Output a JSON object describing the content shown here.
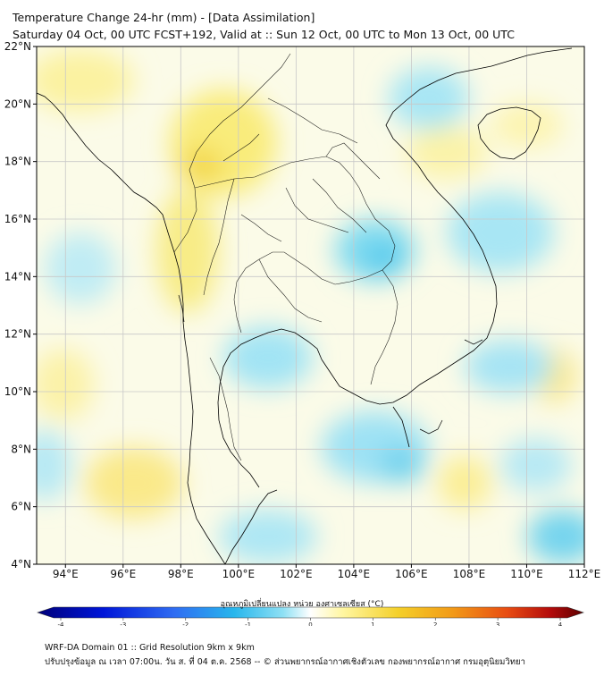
{
  "header": {
    "title": "Temperature Change 24-hr (mm) - [Data Assimilation]",
    "subtitle": "Saturday 04 Oct, 00 UTC FCST+192, Valid at :: Sun 12 Oct, 00 UTC to Mon 13 Oct, 00 UTC"
  },
  "map": {
    "lon_ticks": [
      "94°E",
      "96°E",
      "98°E",
      "100°E",
      "102°E",
      "104°E",
      "106°E",
      "108°E",
      "110°E",
      "112°E"
    ],
    "lat_ticks": [
      "22°N",
      "20°N",
      "18°N",
      "16°N",
      "14°N",
      "12°N",
      "10°N",
      "8°N",
      "6°N",
      "4°N"
    ],
    "lon_range": [
      93,
      112
    ],
    "lat_range": [
      4,
      22
    ],
    "grid": true
  },
  "colorbar": {
    "label": "อุณหภูมิเปลี่ยนแปลง หน่วย องศาเซลเซียส (°C)",
    "ticks": [
      "-4",
      "-3",
      "-2",
      "-1",
      "0",
      "1",
      "2",
      "3",
      "4"
    ],
    "range": [
      -4,
      4
    ],
    "colors": [
      "#00007a",
      "#0016d8",
      "#2f6cf2",
      "#27b6ec",
      "#8fe0f4",
      "#ffffff",
      "#fff6a0",
      "#f4d02a",
      "#f29a17",
      "#e84c12",
      "#b30b0b",
      "#5c0000"
    ]
  },
  "footer": {
    "line1": "WRF-DA Domain 01 :: Grid Resolution 9km x 9km",
    "line2": "ปรับปรุงข้อมูล ณ เวลา 07:00น. วัน ส. ที่ 04 ต.ค. 2568 -- © ส่วนพยากรณ์อากาศเชิงตัวเลข กองพยากรณ์อากาศ กรมอุตุนิยมวิทยา"
  }
}
